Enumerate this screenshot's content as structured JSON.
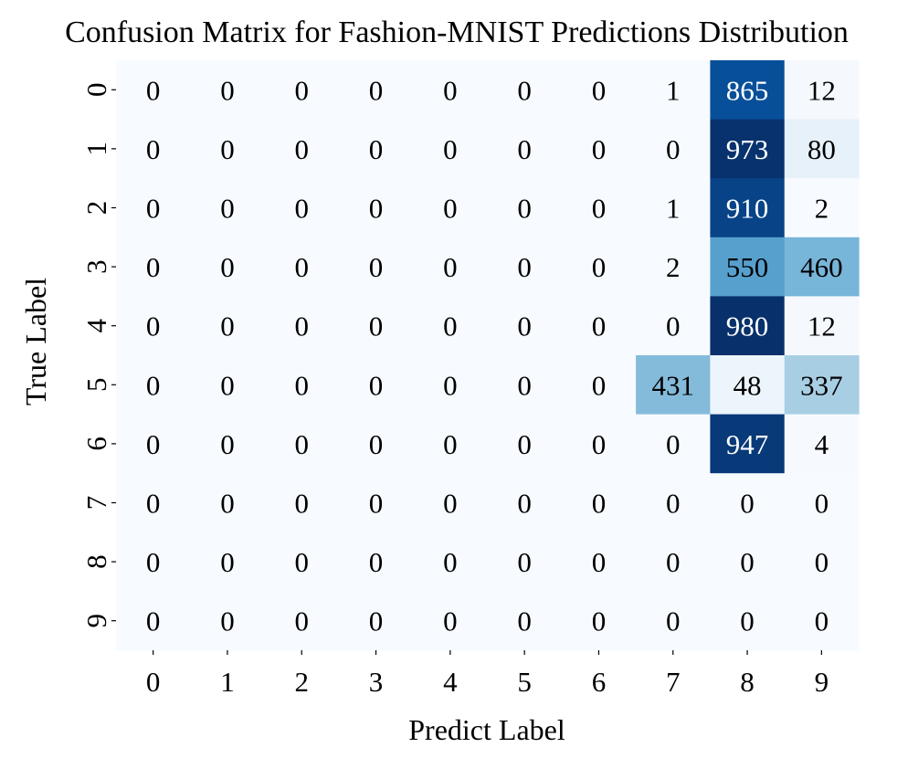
{
  "chart_data": {
    "type": "heatmap",
    "title": "Confusion Matrix for Fashion-MNIST Predictions Distribution",
    "xlabel": "Predict Label",
    "ylabel": "True Label",
    "x_categories": [
      "0",
      "1",
      "2",
      "3",
      "4",
      "5",
      "6",
      "7",
      "8",
      "9"
    ],
    "y_categories": [
      "0",
      "1",
      "2",
      "3",
      "4",
      "5",
      "6",
      "7",
      "8",
      "9"
    ],
    "values": [
      [
        0,
        0,
        0,
        0,
        0,
        0,
        0,
        1,
        865,
        12
      ],
      [
        0,
        0,
        0,
        0,
        0,
        0,
        0,
        0,
        973,
        80
      ],
      [
        0,
        0,
        0,
        0,
        0,
        0,
        0,
        1,
        910,
        2
      ],
      [
        0,
        0,
        0,
        0,
        0,
        0,
        0,
        2,
        550,
        460
      ],
      [
        0,
        0,
        0,
        0,
        0,
        0,
        0,
        0,
        980,
        12
      ],
      [
        0,
        0,
        0,
        0,
        0,
        0,
        0,
        431,
        48,
        337
      ],
      [
        0,
        0,
        0,
        0,
        0,
        0,
        0,
        0,
        947,
        4
      ],
      [
        0,
        0,
        0,
        0,
        0,
        0,
        0,
        0,
        0,
        0
      ],
      [
        0,
        0,
        0,
        0,
        0,
        0,
        0,
        0,
        0,
        0
      ],
      [
        0,
        0,
        0,
        0,
        0,
        0,
        0,
        0,
        0,
        0
      ]
    ],
    "colormap": "Blues",
    "color_low": "#f7fbff",
    "color_high": "#08306b",
    "annotations": true,
    "grid": false,
    "legend": "none"
  }
}
